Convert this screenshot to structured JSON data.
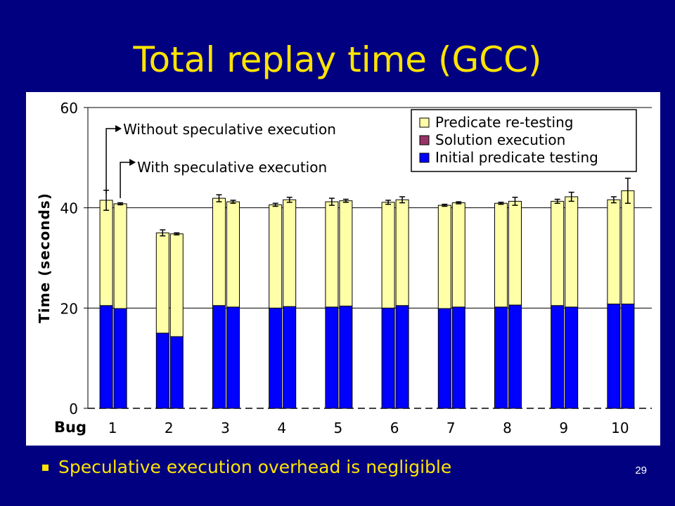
{
  "slide": {
    "title": "Total replay time (GCC)",
    "bullet": "Speculative execution overhead is negligible",
    "slide_number": "29"
  },
  "colors": {
    "background": "#000080",
    "title": "#FFE400",
    "predicate_retesting": "#FFFFA8",
    "solution_execution": "#993366",
    "initial_predicate_testing": "#0000FF"
  },
  "chart_data": {
    "type": "bar",
    "stacked": true,
    "ylabel": "Time (seconds)",
    "xlabel": "Bug",
    "ylim": [
      0,
      60
    ],
    "yticks": [
      "0",
      "20",
      "40",
      "60"
    ],
    "grid": "horizontal",
    "legend_position": "top-right",
    "categories": [
      "1",
      "2",
      "3",
      "4",
      "5",
      "6",
      "7",
      "8",
      "9",
      "10"
    ],
    "series": [
      {
        "name": "Initial predicate testing",
        "color": "#0000FF",
        "without_speculation": [
          20.5,
          15.0,
          20.5,
          20.0,
          20.2,
          20.0,
          19.9,
          20.2,
          20.5,
          20.8
        ],
        "with_speculation": [
          19.9,
          14.3,
          20.2,
          20.3,
          20.4,
          20.5,
          20.2,
          20.6,
          20.2,
          20.8
        ]
      },
      {
        "name": "Solution execution",
        "color": "#993366",
        "without_speculation": [
          0,
          0,
          0,
          0,
          0,
          0,
          0,
          0,
          0,
          0
        ],
        "with_speculation": [
          0,
          0,
          0,
          0,
          0,
          0,
          0,
          0,
          0,
          0
        ]
      },
      {
        "name": "Predicate re-testing",
        "color": "#FFFFA8",
        "without_speculation": [
          21.0,
          20.0,
          21.4,
          20.6,
          21.0,
          21.1,
          20.6,
          20.7,
          20.8,
          20.8
        ],
        "with_speculation": [
          20.9,
          20.5,
          21.0,
          21.3,
          21.0,
          21.1,
          20.8,
          20.7,
          22.0,
          22.6
        ]
      }
    ],
    "error_bars": {
      "without_speculation": [
        2.0,
        0.6,
        0.7,
        0.3,
        0.7,
        0.4,
        0.2,
        0.2,
        0.4,
        0.6
      ],
      "with_speculation": [
        0.2,
        0.2,
        0.3,
        0.5,
        0.3,
        0.6,
        0.2,
        0.8,
        0.9,
        2.5
      ]
    },
    "annotations": [
      {
        "text": "Without speculative execution",
        "target": "left bar of bug 1"
      },
      {
        "text": "With speculative execution",
        "target": "right bar of bug 1"
      }
    ]
  }
}
